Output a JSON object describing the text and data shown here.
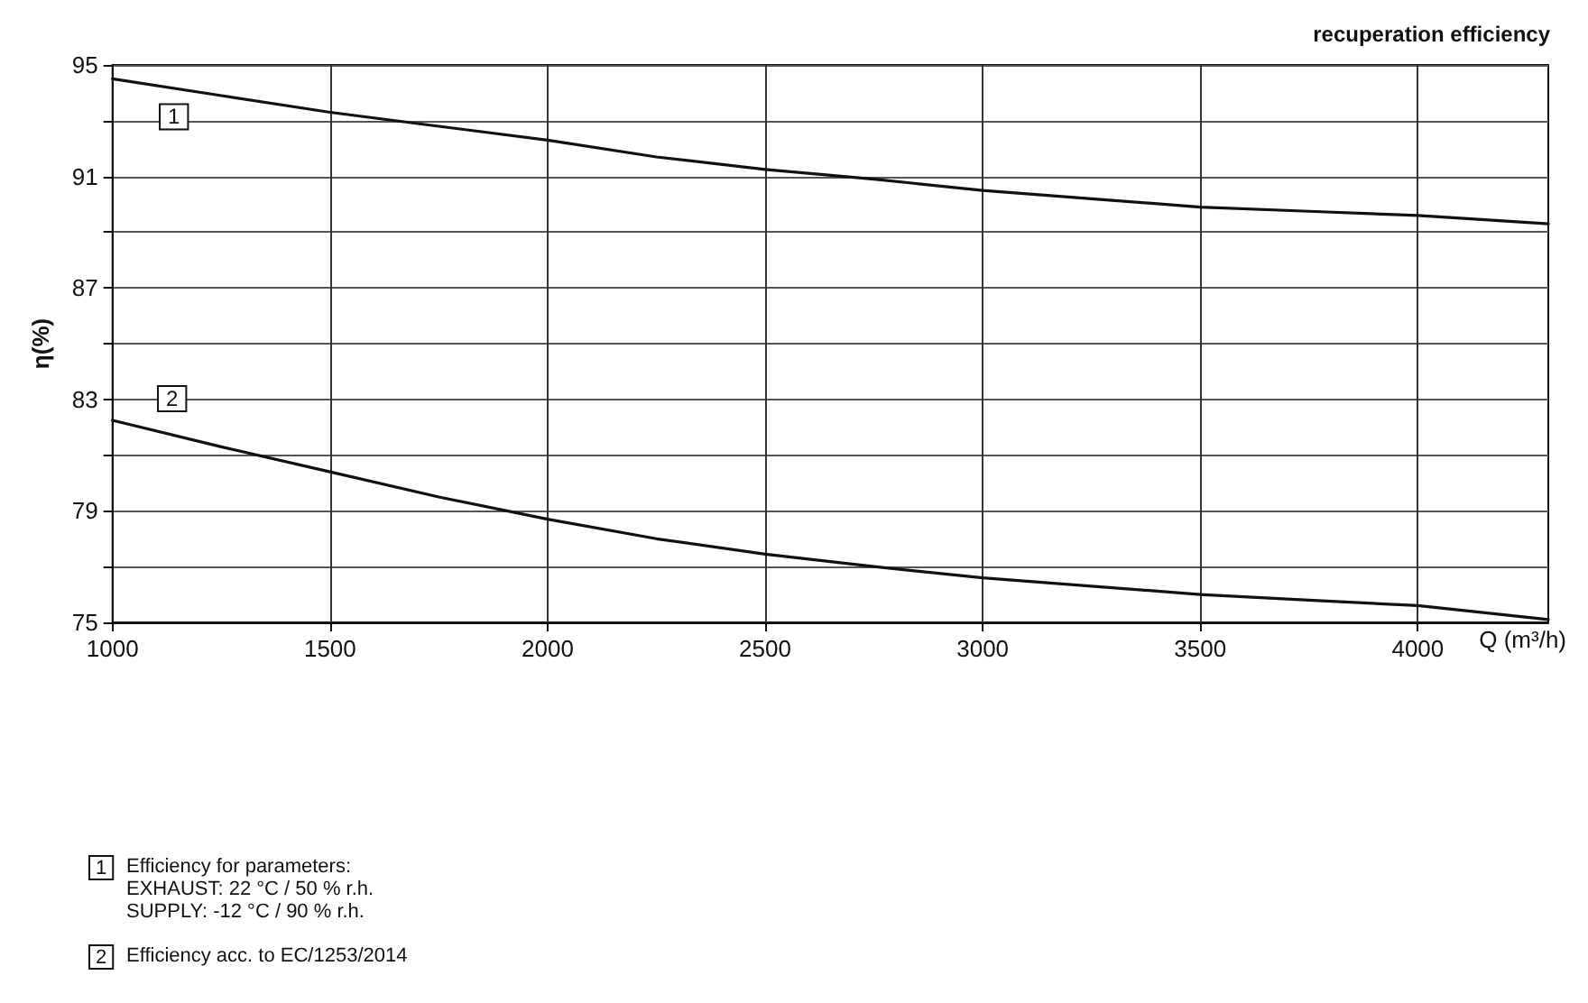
{
  "chart_data": {
    "type": "line",
    "title": "recuperation efficiency",
    "xlabel": "Q (m³/h)",
    "ylabel": "η(%)",
    "x": [
      1000,
      1250,
      1500,
      1750,
      2000,
      2250,
      2500,
      2750,
      3000,
      3250,
      3500,
      3750,
      4000,
      4300
    ],
    "series": [
      {
        "name": "1",
        "color": "#111111",
        "values": [
          94.5,
          93.9,
          93.3,
          92.8,
          92.3,
          91.7,
          91.25,
          90.9,
          90.5,
          90.2,
          89.9,
          89.75,
          89.6,
          89.3
        ]
      },
      {
        "name": "2",
        "color": "#111111",
        "values": [
          82.25,
          81.3,
          80.4,
          79.5,
          78.7,
          78.0,
          77.45,
          77.0,
          76.6,
          76.3,
          76.0,
          75.8,
          75.6,
          75.1
        ]
      }
    ],
    "xlim": [
      1000,
      4300
    ],
    "xticks": [
      1000,
      1500,
      2000,
      2500,
      3000,
      3500,
      4000
    ],
    "ylim": [
      75,
      95
    ],
    "yticks": [
      75,
      {
        "value": 77,
        "label": null
      },
      79,
      {
        "value": 81,
        "label": null
      },
      83,
      {
        "value": 85,
        "label": null
      },
      87,
      {
        "value": 89,
        "label": null
      },
      91,
      {
        "value": 93,
        "label": null
      },
      95
    ],
    "grid": true,
    "marker": "none",
    "line_style": "solid",
    "annotations": [
      "Efficiency for parameters:\nEXHAUST: 22 °C / 50 % r.h.\nSUPPLY: -12 °C / 90 % r.h.",
      "Efficiency acc. to EC/1253/2014"
    ]
  }
}
